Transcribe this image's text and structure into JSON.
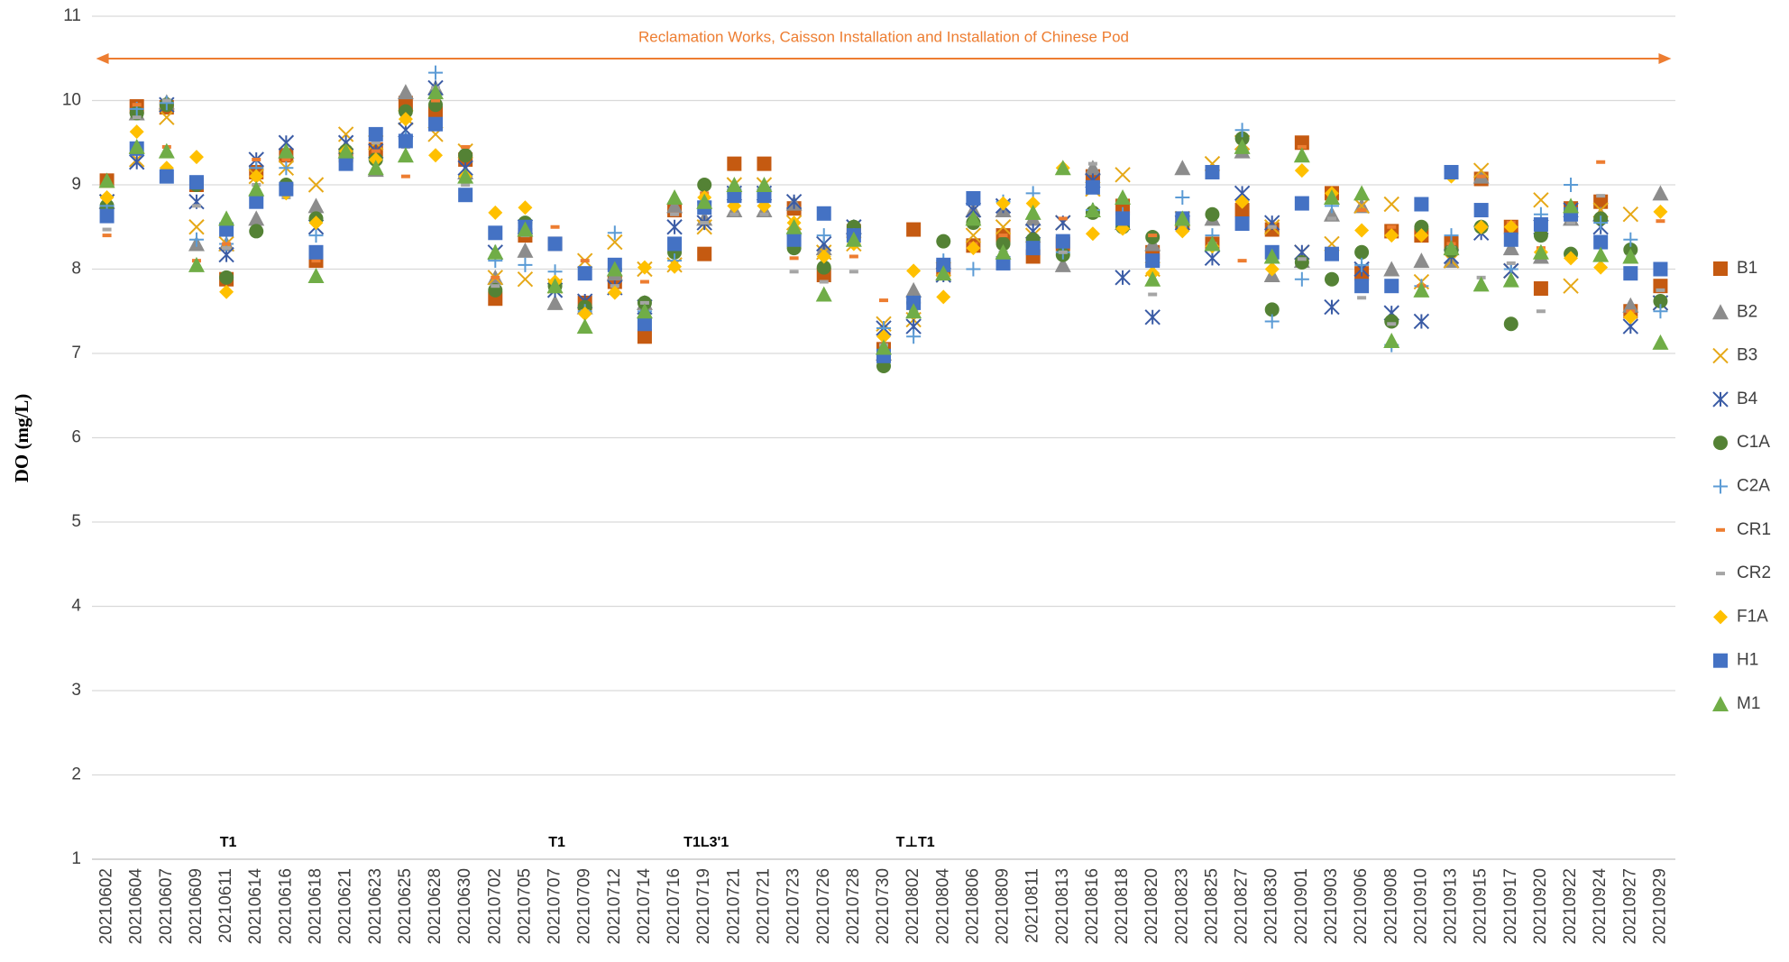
{
  "chart_data": {
    "type": "scatter",
    "y_label": "DO (mg/L)",
    "annotation": "Reclamation Works, Caisson Installation and Installation of Chinese Pod",
    "event_labels": [
      "T1",
      "T1",
      "T1L3'1",
      "T⊥T1"
    ],
    "ylim": [
      1,
      11
    ],
    "yticks": [
      1,
      2,
      3,
      4,
      5,
      6,
      7,
      8,
      9,
      10,
      11
    ],
    "grid": true,
    "legend": "right",
    "categories": [
      "20210602",
      "20210604",
      "20210607",
      "20210609",
      "20210611",
      "20210614",
      "20210616",
      "20210618",
      "20210621",
      "20210623",
      "20210625",
      "20210628",
      "20210630",
      "20210702",
      "20210705",
      "20210707",
      "20210709",
      "20210712",
      "20210714",
      "20210716",
      "20210719",
      "20210721",
      "20210721",
      "20210723",
      "20210726",
      "20210728",
      "20210730",
      "20210802",
      "20210804",
      "20210806",
      "20210809",
      "20210811",
      "20210813",
      "20210816",
      "20210818",
      "20210820",
      "20210823",
      "20210825",
      "20210827",
      "20210830",
      "20210901",
      "20210903",
      "20210906",
      "20210908",
      "20210910",
      "20210913",
      "20210915",
      "20210917",
      "20210920",
      "20210922",
      "20210924",
      "20210927",
      "20210929"
    ],
    "series": [
      {
        "name": "B1",
        "color": "#c55a11",
        "marker": "square",
        "values": [
          9.05,
          9.93,
          9.92,
          9.0,
          7.88,
          9.15,
          9.35,
          8.1,
          9.35,
          9.42,
          9.97,
          9.85,
          9.3,
          7.65,
          8.4,
          8.3,
          7.6,
          7.85,
          7.2,
          8.7,
          8.18,
          9.25,
          9.25,
          8.72,
          7.93,
          8.45,
          7.05,
          8.47,
          8.0,
          8.28,
          8.4,
          8.15,
          8.3,
          9.1,
          8.75,
          8.2,
          8.55,
          8.3,
          8.7,
          8.47,
          9.5,
          8.9,
          7.95,
          8.45,
          8.4,
          8.32,
          9.07,
          8.5,
          7.77,
          8.72,
          8.8,
          7.5,
          7.8
        ]
      },
      {
        "name": "B2",
        "color": "#8c8c8c",
        "marker": "triangle",
        "values": [
          8.8,
          9.85,
          9.98,
          8.3,
          8.3,
          8.6,
          9.4,
          8.75,
          9.45,
          9.18,
          10.1,
          10.15,
          9.15,
          7.9,
          8.22,
          7.6,
          7.55,
          7.95,
          7.6,
          8.75,
          8.6,
          8.7,
          8.7,
          8.78,
          8.25,
          8.5,
          7.0,
          7.75,
          7.95,
          8.7,
          8.7,
          8.6,
          8.05,
          9.2,
          8.55,
          8.3,
          9.2,
          8.6,
          9.4,
          7.93,
          8.1,
          8.65,
          8.75,
          8.0,
          8.1,
          8.1,
          9.1,
          8.25,
          8.15,
          8.6,
          8.65,
          7.57,
          8.9
        ]
      },
      {
        "name": "B3",
        "color": "#e6a817",
        "marker": "x",
        "values": [
          8.8,
          9.3,
          9.8,
          8.5,
          8.3,
          9.1,
          9.2,
          9.0,
          9.6,
          9.5,
          9.8,
          9.6,
          9.4,
          7.9,
          7.88,
          7.8,
          8.1,
          8.32,
          8.0,
          8.05,
          8.5,
          9.0,
          9.0,
          8.55,
          8.2,
          8.3,
          7.35,
          7.4,
          8.0,
          8.4,
          8.5,
          8.4,
          8.55,
          8.95,
          9.12,
          8.0,
          8.6,
          9.25,
          9.5,
          8.5,
          8.2,
          8.3,
          8.75,
          8.77,
          7.85,
          8.1,
          9.17,
          7.98,
          8.82,
          7.8,
          8.7,
          8.65,
          7.6
        ]
      },
      {
        "name": "B4",
        "color": "#3a5ba5",
        "marker": "star",
        "values": [
          8.8,
          9.27,
          9.95,
          8.8,
          8.17,
          9.3,
          9.5,
          8.5,
          9.5,
          9.4,
          9.65,
          10.15,
          9.2,
          8.2,
          8.5,
          7.75,
          7.62,
          7.78,
          7.55,
          8.5,
          8.55,
          8.9,
          8.9,
          8.8,
          8.3,
          8.5,
          7.3,
          7.32,
          7.93,
          8.7,
          8.75,
          8.45,
          8.55,
          9.05,
          7.9,
          7.43,
          8.55,
          8.13,
          8.9,
          8.55,
          8.2,
          7.55,
          8.0,
          7.48,
          7.38,
          8.15,
          8.43,
          7.98,
          8.5,
          8.7,
          8.5,
          7.32,
          7.6
        ]
      },
      {
        "name": "C1A",
        "color": "#548235",
        "marker": "circle",
        "values": [
          8.75,
          9.85,
          9.95,
          9.0,
          7.9,
          8.45,
          9.0,
          8.6,
          9.4,
          9.3,
          9.87,
          9.95,
          9.35,
          7.75,
          8.55,
          7.8,
          7.55,
          8.0,
          7.6,
          8.2,
          9.0,
          8.9,
          8.9,
          8.25,
          8.02,
          8.5,
          6.85,
          7.6,
          8.33,
          8.55,
          8.3,
          8.35,
          8.17,
          8.67,
          8.5,
          8.38,
          8.55,
          8.65,
          9.55,
          7.52,
          8.08,
          7.88,
          8.2,
          7.38,
          8.5,
          8.22,
          8.5,
          7.35,
          8.4,
          8.18,
          8.6,
          8.23,
          7.62
        ]
      },
      {
        "name": "C2A",
        "color": "#5b9bd5",
        "marker": "plus",
        "values": [
          8.75,
          9.9,
          9.97,
          8.35,
          8.3,
          9.2,
          9.2,
          8.4,
          9.3,
          9.3,
          9.55,
          10.33,
          9.1,
          8.1,
          8.05,
          7.97,
          7.5,
          8.43,
          7.5,
          8.1,
          8.8,
          8.8,
          8.8,
          8.4,
          8.4,
          8.4,
          7.3,
          7.2,
          8.1,
          8.0,
          8.8,
          8.9,
          8.2,
          8.7,
          8.65,
          8.05,
          8.85,
          8.4,
          9.65,
          7.38,
          7.88,
          8.75,
          8.05,
          7.1,
          7.8,
          8.4,
          8.5,
          8.0,
          8.65,
          9.0,
          8.55,
          8.35,
          7.5
        ]
      },
      {
        "name": "CR1",
        "color": "#ed7d31",
        "marker": "dash",
        "values": [
          8.4,
          9.95,
          9.45,
          8.1,
          8.3,
          9.3,
          9.3,
          8.1,
          9.4,
          9.4,
          9.1,
          10.0,
          9.45,
          7.9,
          8.4,
          8.5,
          8.1,
          7.8,
          7.85,
          8.65,
          8.9,
          8.8,
          8.8,
          8.13,
          8.15,
          8.15,
          7.63,
          7.5,
          8.0,
          8.3,
          8.4,
          8.3,
          8.6,
          9.0,
          8.5,
          8.4,
          8.6,
          8.3,
          8.1,
          8.5,
          9.45,
          8.87,
          8.7,
          8.5,
          7.8,
          8.3,
          9.1,
          8.55,
          8.25,
          8.7,
          9.27,
          7.5,
          8.57
        ]
      },
      {
        "name": "CR2",
        "color": "#a5a5a5",
        "marker": "dash",
        "values": [
          8.47,
          9.8,
          10.0,
          8.75,
          8.25,
          9.0,
          8.85,
          8.55,
          9.2,
          9.5,
          9.45,
          10.15,
          9.0,
          7.8,
          8.4,
          7.85,
          7.5,
          7.8,
          7.6,
          8.65,
          8.55,
          8.65,
          8.65,
          7.97,
          7.85,
          7.97,
          7.1,
          7.5,
          8.0,
          8.25,
          8.2,
          8.3,
          8.2,
          9.25,
          8.6,
          7.7,
          8.5,
          8.3,
          8.6,
          8.5,
          8.12,
          8.6,
          7.66,
          7.35,
          8.4,
          8.25,
          7.9,
          8.07,
          7.5,
          8.55,
          8.87,
          8.15,
          7.75
        ]
      },
      {
        "name": "F1A",
        "color": "#ffc000",
        "marker": "diamond",
        "values": [
          8.85,
          9.63,
          9.2,
          9.33,
          7.73,
          9.1,
          8.9,
          8.55,
          9.4,
          9.3,
          9.78,
          9.35,
          9.1,
          8.67,
          8.73,
          7.85,
          7.47,
          7.72,
          8.02,
          8.03,
          8.85,
          8.75,
          8.75,
          8.55,
          8.15,
          8.3,
          7.2,
          7.98,
          7.67,
          8.25,
          8.78,
          8.78,
          9.2,
          8.42,
          8.48,
          7.95,
          8.45,
          8.27,
          8.8,
          8.0,
          9.17,
          8.9,
          8.46,
          8.4,
          8.4,
          9.1,
          8.5,
          8.5,
          8.2,
          8.13,
          8.02,
          7.43,
          8.68
        ]
      },
      {
        "name": "H1",
        "color": "#4472c4",
        "marker": "square",
        "values": [
          8.63,
          9.43,
          9.1,
          9.03,
          8.47,
          8.8,
          8.95,
          8.2,
          9.25,
          9.6,
          9.52,
          9.72,
          8.88,
          8.43,
          8.5,
          8.3,
          7.95,
          8.05,
          7.35,
          8.3,
          8.73,
          8.87,
          8.87,
          8.35,
          8.66,
          8.4,
          6.97,
          7.6,
          8.05,
          8.84,
          8.07,
          8.25,
          8.33,
          8.97,
          8.6,
          8.1,
          8.6,
          9.15,
          8.54,
          8.2,
          8.78,
          8.18,
          7.8,
          7.8,
          8.77,
          9.15,
          8.7,
          8.35,
          8.53,
          8.65,
          8.32,
          7.95,
          8.0
        ]
      },
      {
        "name": "M1",
        "color": "#70ad47",
        "marker": "triangle",
        "values": [
          9.05,
          9.45,
          9.4,
          8.05,
          8.6,
          8.95,
          9.4,
          7.92,
          9.4,
          9.2,
          9.35,
          10.1,
          9.1,
          8.2,
          8.47,
          7.8,
          7.32,
          8.0,
          7.5,
          8.85,
          8.8,
          9.0,
          9.0,
          8.5,
          7.7,
          8.35,
          7.07,
          7.5,
          7.95,
          8.6,
          8.2,
          8.67,
          9.2,
          8.7,
          8.85,
          7.88,
          8.6,
          8.3,
          9.45,
          8.15,
          9.35,
          8.85,
          8.9,
          7.15,
          7.75,
          8.25,
          7.82,
          7.87,
          8.2,
          8.75,
          8.17,
          8.15,
          7.13
        ]
      }
    ]
  }
}
